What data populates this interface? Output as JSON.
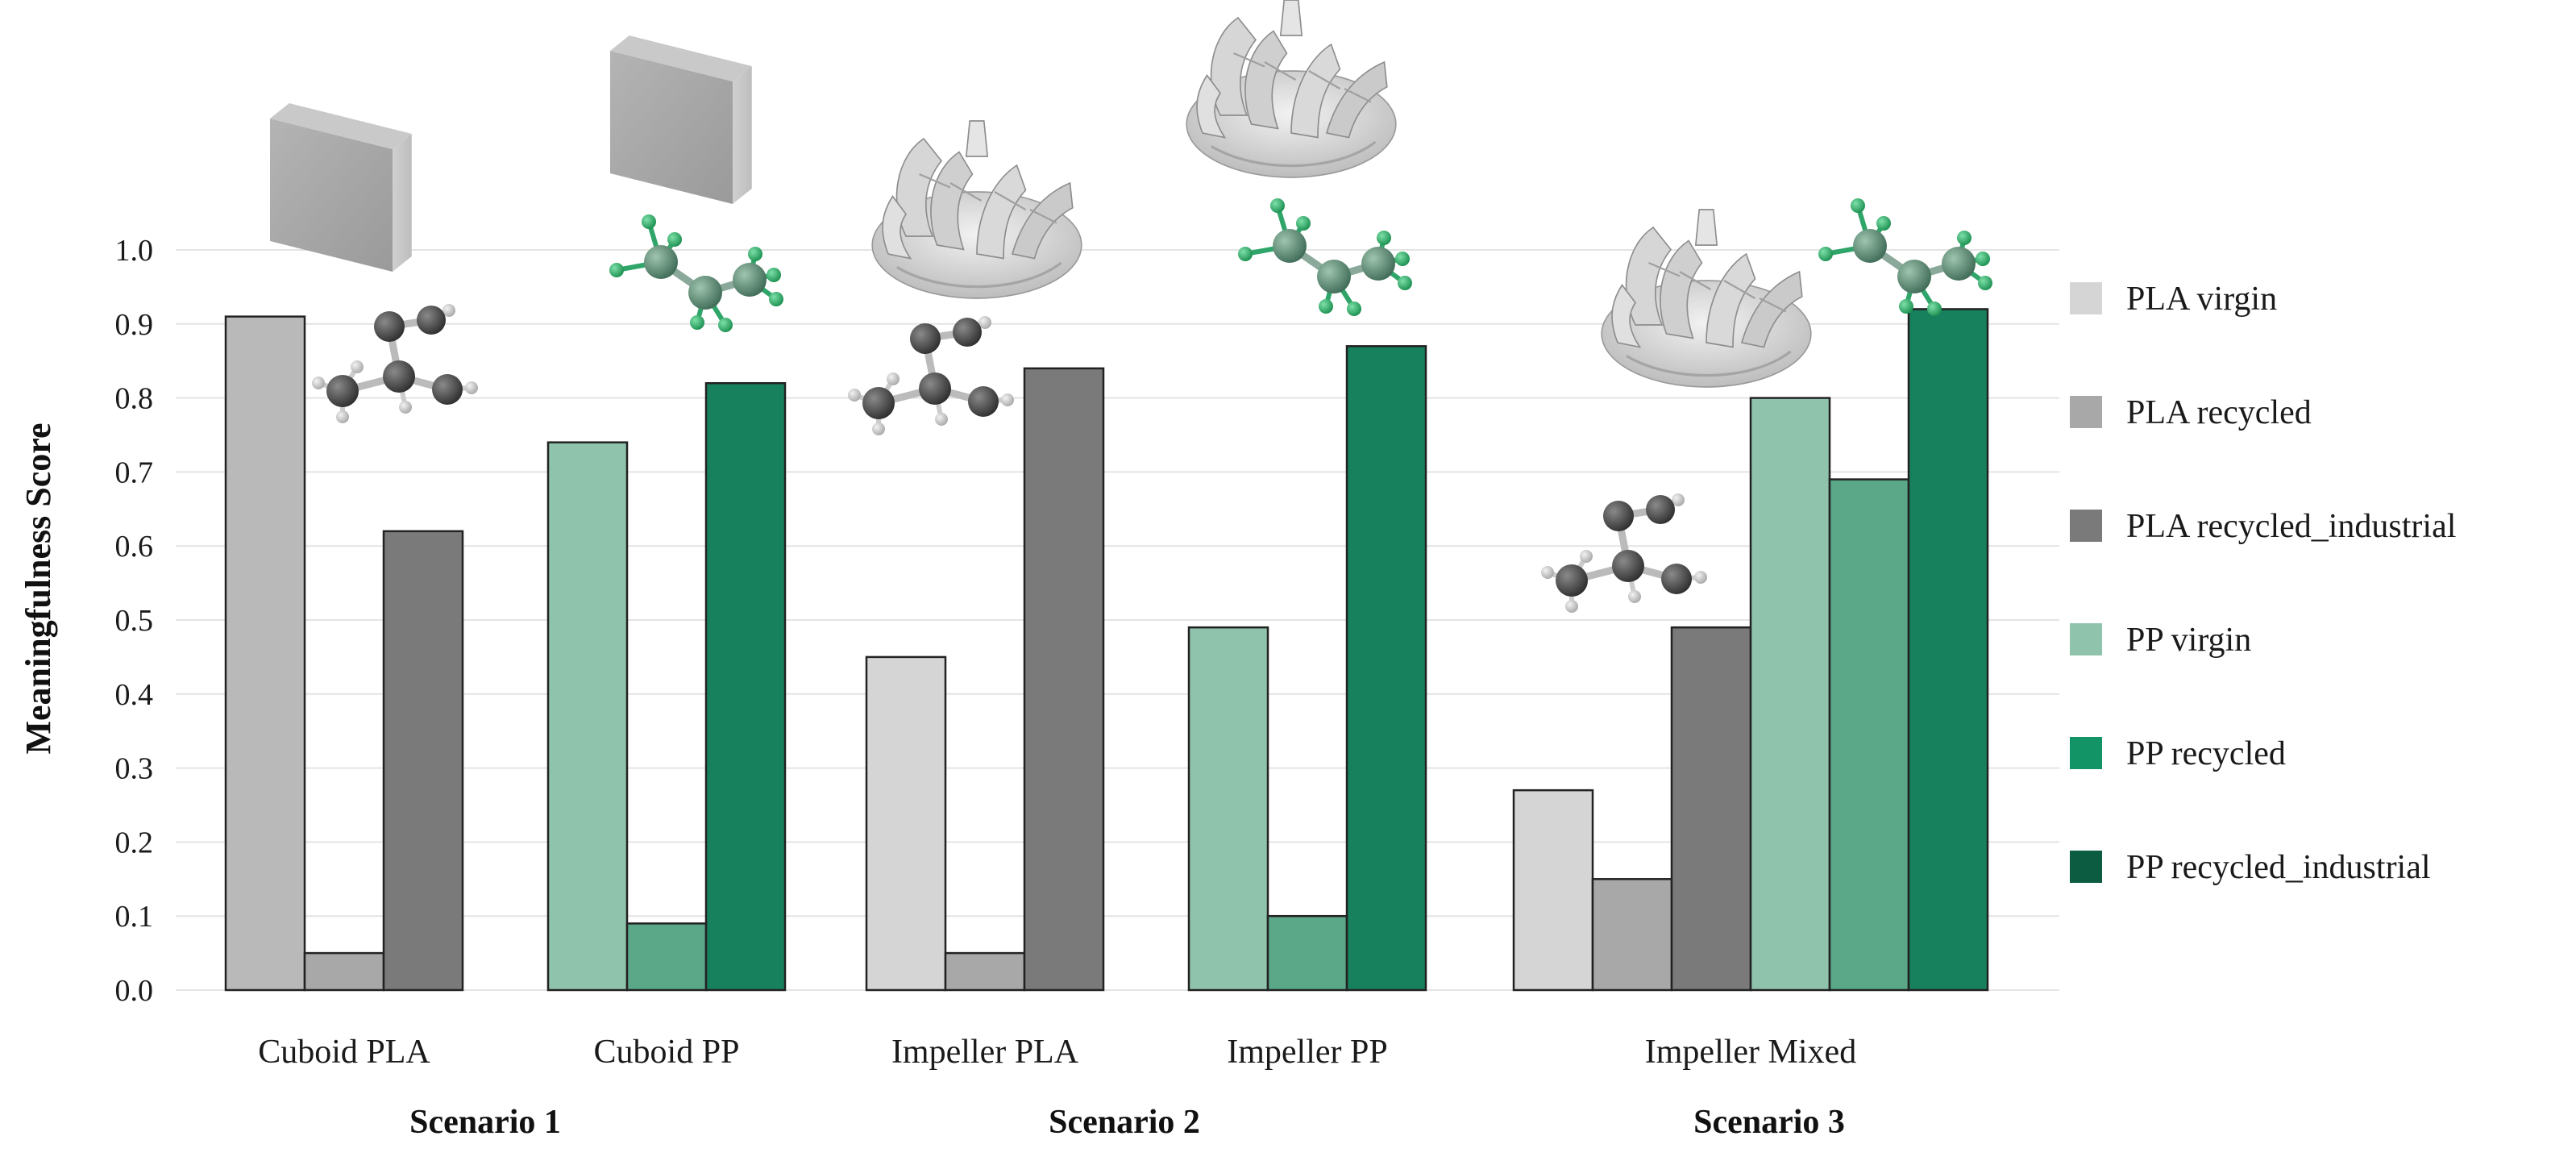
{
  "colors": {
    "PLA virgin": "#d5d5d5",
    "PLA recycled": "#a8a8a8",
    "PLA recycled_industrial": "#7a7a7a",
    "PP virgin": "#8fc3ab",
    "PP recycled": "#5aa888",
    "PP recycled_industrial": "#17805c",
    "cuboid_pla_virgin": "#b9b9b9",
    "legend_pp_recycled": "#129466",
    "legend_pp_recycled_industrial": "#0c5c42"
  },
  "chart_data": {
    "type": "bar",
    "ylabel": "Meaningfulness Score",
    "ylim": [
      0.0,
      1.0
    ],
    "yticks": [
      "0.0",
      "0.1",
      "0.2",
      "0.3",
      "0.4",
      "0.5",
      "0.6",
      "0.7",
      "0.8",
      "0.9",
      "1.0"
    ],
    "grid": true,
    "legend_position": "right",
    "legend": [
      "PLA virgin",
      "PLA recycled",
      "PLA recycled_industrial",
      "PP virgin",
      "PP recycled",
      "PP recycled_industrial"
    ],
    "groups": [
      {
        "category": "Cuboid PLA",
        "scenario": "Scenario 1",
        "bars": [
          {
            "series": "PLA virgin",
            "value": 0.91
          },
          {
            "series": "PLA recycled",
            "value": 0.05
          },
          {
            "series": "PLA recycled_industrial",
            "value": 0.62
          }
        ]
      },
      {
        "category": "Cuboid PP",
        "scenario": "",
        "bars": [
          {
            "series": "PP virgin",
            "value": 0.74
          },
          {
            "series": "PP recycled",
            "value": 0.09
          },
          {
            "series": "PP recycled_industrial",
            "value": 0.82
          }
        ]
      },
      {
        "category": "Impeller PLA",
        "scenario": "Scenario 2",
        "bars": [
          {
            "series": "PLA virgin",
            "value": 0.45
          },
          {
            "series": "PLA recycled",
            "value": 0.05
          },
          {
            "series": "PLA recycled_industrial",
            "value": 0.84
          }
        ]
      },
      {
        "category": "Impeller PP",
        "scenario": "",
        "bars": [
          {
            "series": "PP virgin",
            "value": 0.49
          },
          {
            "series": "PP recycled",
            "value": 0.1
          },
          {
            "series": "PP recycled_industrial",
            "value": 0.87
          }
        ]
      },
      {
        "category": "Impeller Mixed",
        "scenario": "Scenario 3",
        "bars": [
          {
            "series": "PLA virgin",
            "value": 0.27
          },
          {
            "series": "PLA recycled",
            "value": 0.15
          },
          {
            "series": "PLA recycled_industrial",
            "value": 0.49
          },
          {
            "series": "PP virgin",
            "value": 0.8
          },
          {
            "series": "PP recycled",
            "value": 0.69
          },
          {
            "series": "PP recycled_industrial",
            "value": 0.92
          }
        ]
      }
    ],
    "scenarios": [
      "Scenario 1",
      "Scenario 2",
      "Scenario 3"
    ],
    "illustrations": [
      "cuboid-icon",
      "impeller-icon",
      "pla-molecule-icon",
      "pp-molecule-icon"
    ]
  }
}
